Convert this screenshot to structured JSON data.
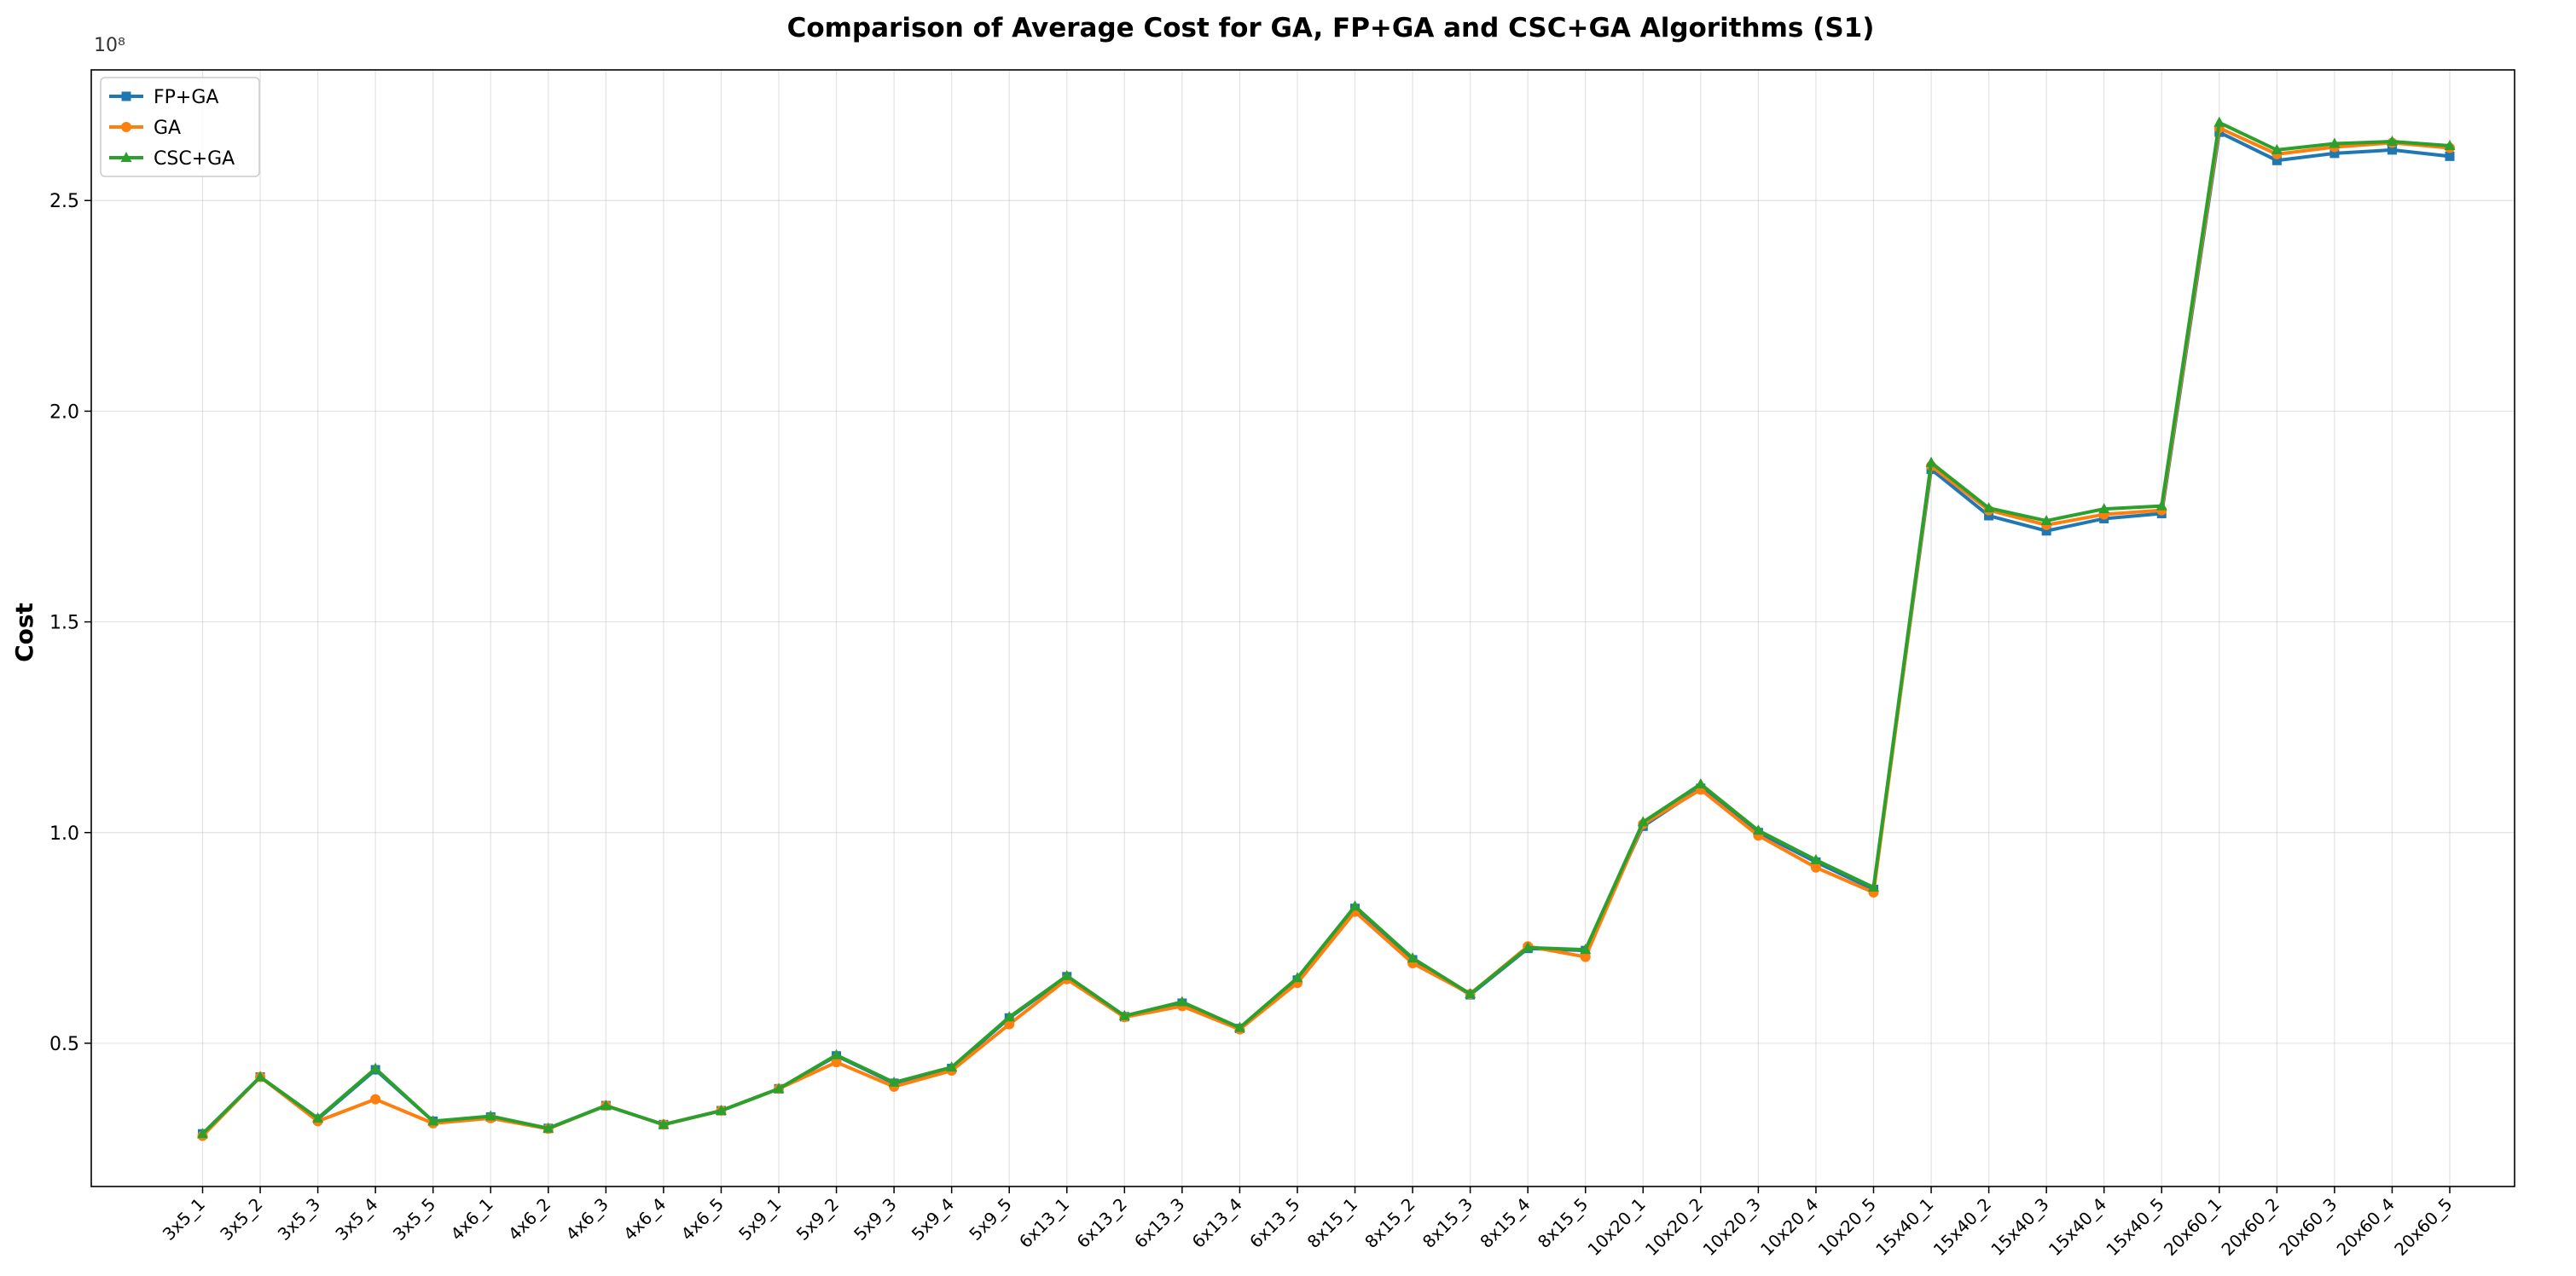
{
  "chart_data": {
    "type": "line",
    "title": "Comparison of Average Cost for GA, FP+GA and CSC+GA Algorithms (S1)",
    "ylabel": "Cost",
    "y_offset_label": "10⁸",
    "y_scale": 100000000,
    "ylim": [
      0.16,
      2.81
    ],
    "yticks": [
      0.5,
      1.0,
      1.5,
      2.0,
      2.5
    ],
    "ytick_labels": [
      "0.5",
      "1.0",
      "1.5",
      "2.0",
      "2.5"
    ],
    "grid": true,
    "legend_position": "top-left",
    "categories": [
      "3x5_1",
      "3x5_2",
      "3x5_3",
      "3x5_4",
      "3x5_5",
      "4x6_1",
      "4x6_2",
      "4x6_3",
      "4x6_4",
      "4x6_5",
      "5x9_1",
      "5x9_2",
      "5x9_3",
      "5x9_4",
      "5x9_5",
      "6x13_1",
      "6x13_2",
      "6x13_3",
      "6x13_4",
      "6x13_5",
      "8x15_1",
      "8x15_2",
      "8x15_3",
      "8x15_4",
      "8x15_5",
      "10x20_1",
      "10x20_2",
      "10x20_3",
      "10x20_4",
      "10x20_5",
      "15x40_1",
      "15x40_2",
      "15x40_3",
      "15x40_4",
      "15x40_5",
      "20x60_1",
      "20x60_2",
      "20x60_3",
      "20x60_4",
      "20x60_5"
    ],
    "series": [
      {
        "name": "FP+GA",
        "color": "#1f77b4",
        "marker": "square",
        "values": [
          0.285,
          0.42,
          0.32,
          0.437,
          0.315,
          0.325,
          0.298,
          0.352,
          0.307,
          0.34,
          0.392,
          0.47,
          0.405,
          0.44,
          0.56,
          0.658,
          0.563,
          0.595,
          0.535,
          0.65,
          0.82,
          0.698,
          0.615,
          0.725,
          0.72,
          1.015,
          1.105,
          1.0,
          0.93,
          0.865,
          1.862,
          1.752,
          1.716,
          1.745,
          1.757,
          2.662,
          2.595,
          2.612,
          2.62,
          2.605
        ]
      },
      {
        "name": "GA",
        "color": "#ff7f0e",
        "marker": "circle",
        "values": [
          0.28,
          0.42,
          0.315,
          0.367,
          0.31,
          0.322,
          0.297,
          0.352,
          0.307,
          0.34,
          0.392,
          0.455,
          0.397,
          0.435,
          0.545,
          0.652,
          0.562,
          0.588,
          0.533,
          0.643,
          0.812,
          0.69,
          0.617,
          0.73,
          0.705,
          1.02,
          1.102,
          0.993,
          0.917,
          0.858,
          1.87,
          1.765,
          1.73,
          1.755,
          1.765,
          2.672,
          2.61,
          2.627,
          2.637,
          2.625
        ]
      },
      {
        "name": "CSC+GA",
        "color": "#2ca02c",
        "marker": "triangle",
        "values": [
          0.285,
          0.42,
          0.322,
          0.44,
          0.315,
          0.327,
          0.298,
          0.352,
          0.307,
          0.34,
          0.392,
          0.472,
          0.407,
          0.443,
          0.562,
          0.66,
          0.565,
          0.598,
          0.537,
          0.655,
          0.825,
          0.702,
          0.617,
          0.727,
          0.722,
          1.025,
          1.115,
          1.005,
          0.935,
          0.87,
          1.878,
          1.77,
          1.74,
          1.768,
          1.775,
          2.685,
          2.62,
          2.635,
          2.64,
          2.63
        ]
      }
    ]
  }
}
